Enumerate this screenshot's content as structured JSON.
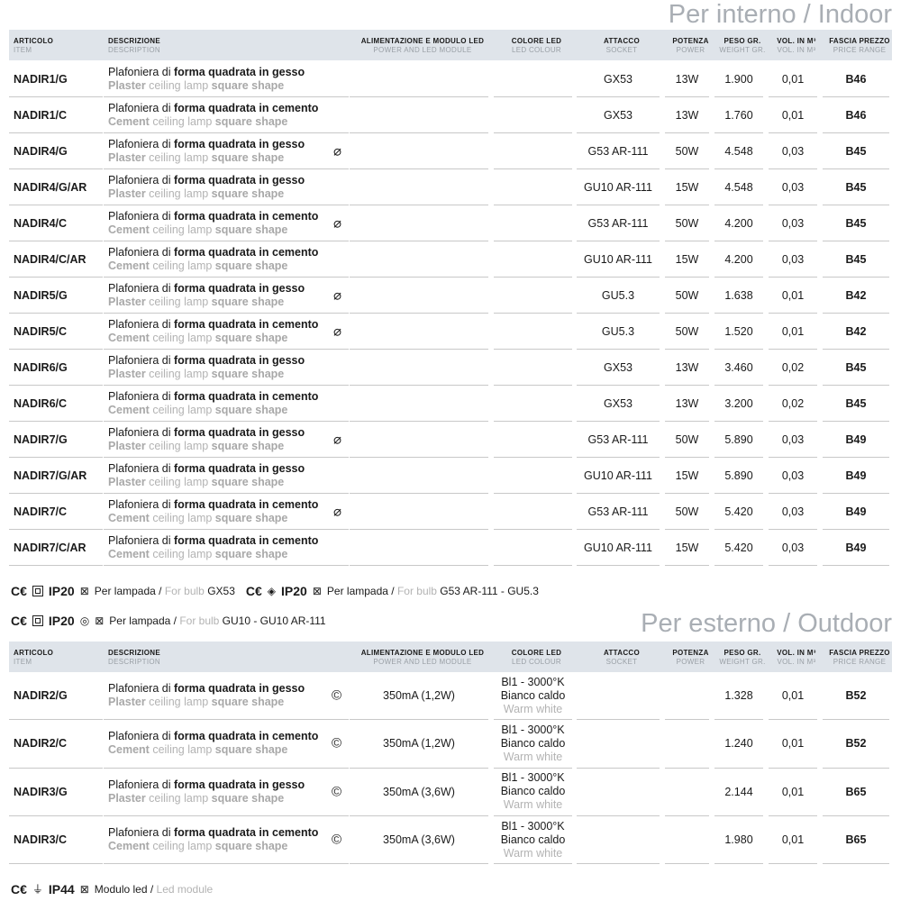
{
  "columns": [
    {
      "it": "ARTICOLO",
      "en": "ITEM"
    },
    {
      "it": "DESCRIZIONE",
      "en": "DESCRIPTION"
    },
    {
      "it": "ALIMENTAZIONE E MODULO LED",
      "en": "POWER AND LED MODULE"
    },
    {
      "it": "COLORE LED",
      "en": "LED COLOUR"
    },
    {
      "it": "ATTACCO",
      "en": "SOCKET"
    },
    {
      "it": "POTENZA",
      "en": "POWER"
    },
    {
      "it": "PESO GR.",
      "en": "WEIGHT GR."
    },
    {
      "it": "VOL. IN M³",
      "en": "VOL. IN M³"
    },
    {
      "it": "FASCIA PREZZO",
      "en": "PRICE RANGE"
    }
  ],
  "indoor": {
    "title": "Per interno / Indoor",
    "rows": [
      {
        "item": "NADIR1/G",
        "it": "Plafoniera di ",
        "itb": "forma quadrata in gesso",
        "mat": "Plaster",
        "icon": "",
        "socket": "GX53",
        "power": "13W",
        "weight": "1.900",
        "vol": "0,01",
        "price": "B46"
      },
      {
        "item": "NADIR1/C",
        "it": "Plafoniera di ",
        "itb": "forma quadrata in cemento",
        "mat": "Cement",
        "icon": "",
        "socket": "GX53",
        "power": "13W",
        "weight": "1.760",
        "vol": "0,01",
        "price": "B46"
      },
      {
        "item": "NADIR4/G",
        "it": "Plafoniera di ",
        "itb": "forma quadrata in gesso",
        "mat": "Plaster",
        "icon": "⌀",
        "socket": "G53 AR-111",
        "power": "50W",
        "weight": "4.548",
        "vol": "0,03",
        "price": "B45"
      },
      {
        "item": "NADIR4/G/AR",
        "it": "Plafoniera di ",
        "itb": "forma quadrata in gesso",
        "mat": "Plaster",
        "icon": "",
        "socket": "GU10 AR-111",
        "power": "15W",
        "weight": "4.548",
        "vol": "0,03",
        "price": "B45"
      },
      {
        "item": "NADIR4/C",
        "it": "Plafoniera di ",
        "itb": "forma quadrata in cemento",
        "mat": "Cement",
        "icon": "⌀",
        "socket": "G53 AR-111",
        "power": "50W",
        "weight": "4.200",
        "vol": "0,03",
        "price": "B45"
      },
      {
        "item": "NADIR4/C/AR",
        "it": "Plafoniera di ",
        "itb": "forma quadrata in cemento",
        "mat": "Cement",
        "icon": "",
        "socket": "GU10 AR-111",
        "power": "15W",
        "weight": "4.200",
        "vol": "0,03",
        "price": "B45"
      },
      {
        "item": "NADIR5/G",
        "it": "Plafoniera di ",
        "itb": "forma quadrata in gesso",
        "mat": "Plaster",
        "icon": "⌀",
        "socket": "GU5.3",
        "power": "50W",
        "weight": "1.638",
        "vol": "0,01",
        "price": "B42"
      },
      {
        "item": "NADIR5/C",
        "it": "Plafoniera di ",
        "itb": "forma quadrata in cemento",
        "mat": "Cement",
        "icon": "⌀",
        "socket": "GU5.3",
        "power": "50W",
        "weight": "1.520",
        "vol": "0,01",
        "price": "B42"
      },
      {
        "item": "NADIR6/G",
        "it": "Plafoniera di ",
        "itb": "forma quadrata in gesso",
        "mat": "Plaster",
        "icon": "",
        "socket": "GX53",
        "power": "13W",
        "weight": "3.460",
        "vol": "0,02",
        "price": "B45"
      },
      {
        "item": "NADIR6/C",
        "it": "Plafoniera di ",
        "itb": "forma quadrata in cemento",
        "mat": "Cement",
        "icon": "",
        "socket": "GX53",
        "power": "13W",
        "weight": "3.200",
        "vol": "0,02",
        "price": "B45"
      },
      {
        "item": "NADIR7/G",
        "it": "Plafoniera di ",
        "itb": "forma quadrata in gesso",
        "mat": "Plaster",
        "icon": "⌀",
        "socket": "G53 AR-111",
        "power": "50W",
        "weight": "5.890",
        "vol": "0,03",
        "price": "B49"
      },
      {
        "item": "NADIR7/G/AR",
        "it": "Plafoniera di ",
        "itb": "forma quadrata in gesso",
        "mat": "Plaster",
        "icon": "",
        "socket": "GU10 AR-111",
        "power": "15W",
        "weight": "5.890",
        "vol": "0,03",
        "price": "B49"
      },
      {
        "item": "NADIR7/C",
        "it": "Plafoniera di ",
        "itb": "forma quadrata in cemento",
        "mat": "Cement",
        "icon": "⌀",
        "socket": "G53 AR-111",
        "power": "50W",
        "weight": "5.420",
        "vol": "0,03",
        "price": "B49"
      },
      {
        "item": "NADIR7/C/AR",
        "it": "Plafoniera di ",
        "itb": "forma quadrata in cemento",
        "mat": "Cement",
        "icon": "",
        "socket": "GU10 AR-111",
        "power": "15W",
        "weight": "5.420",
        "vol": "0,03",
        "price": "B49"
      }
    ]
  },
  "desc_en_mid": " ceiling lamp ",
  "desc_en_bold": "square shape",
  "cert_lines": [
    [
      {
        "ip": "IP20",
        "label_it": "Per lampada / ",
        "label_en": "For bulb ",
        "value": "GX53"
      },
      {
        "ip": "IP20",
        "label_it": "Per lampada / ",
        "label_en": "For bulb ",
        "value": "G53 AR-111 - GU5.3"
      }
    ],
    [
      {
        "ip": "IP20",
        "label_it": "Per lampada / ",
        "label_en": "For bulb ",
        "value": "GU10 - GU10 AR-111"
      }
    ]
  ],
  "outdoor": {
    "title": "Per esterno / Outdoor",
    "rows": [
      {
        "item": "NADIR2/G",
        "it": "Plafoniera di ",
        "itb": "forma quadrata in gesso",
        "mat": "Plaster",
        "icon": "©",
        "module": "350mA (1,2W)",
        "c1": "Bl1 - 3000°K",
        "c2": "Bianco caldo",
        "c3": "Warm white",
        "weight": "1.328",
        "vol": "0,01",
        "price": "B52"
      },
      {
        "item": "NADIR2/C",
        "it": "Plafoniera di ",
        "itb": "forma quadrata in cemento",
        "mat": "Cement",
        "icon": "©",
        "module": "350mA (1,2W)",
        "c1": "Bl1 - 3000°K",
        "c2": "Bianco caldo",
        "c3": "Warm white",
        "weight": "1.240",
        "vol": "0,01",
        "price": "B52"
      },
      {
        "item": "NADIR3/G",
        "it": "Plafoniera di ",
        "itb": "forma quadrata in gesso",
        "mat": "Plaster",
        "icon": "©",
        "module": "350mA (3,6W)",
        "c1": "Bl1 - 3000°K",
        "c2": "Bianco caldo",
        "c3": "Warm white",
        "weight": "2.144",
        "vol": "0,01",
        "price": "B65"
      },
      {
        "item": "NADIR3/C",
        "it": "Plafoniera di ",
        "itb": "forma quadrata in cemento",
        "mat": "Cement",
        "icon": "©",
        "module": "350mA (3,6W)",
        "c1": "Bl1 - 3000°K",
        "c2": "Bianco caldo",
        "c3": "Warm white",
        "weight": "1.980",
        "vol": "0,01",
        "price": "B65"
      }
    ]
  },
  "outdoor_cert": {
    "ip": "IP44",
    "label_it": "Modulo led / ",
    "label_en": "Led module"
  }
}
